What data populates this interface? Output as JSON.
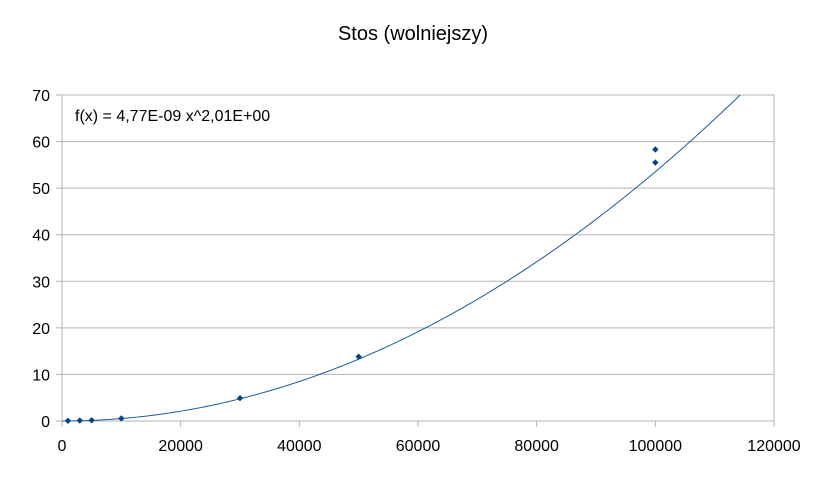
{
  "chart_data": {
    "type": "scatter",
    "title": "Stos (wolniejszy)",
    "xlabel": "",
    "ylabel": "",
    "xlim": [
      0,
      120000
    ],
    "ylim": [
      0,
      70
    ],
    "x_ticks": [
      "0",
      "20000",
      "40000",
      "60000",
      "80000",
      "100000",
      "120000"
    ],
    "y_ticks": [
      "0",
      "10",
      "20",
      "30",
      "40",
      "50",
      "60",
      "70"
    ],
    "grid": "horizontal",
    "legend": "none",
    "points_color": "#004586",
    "trend_color": "#1f5a96",
    "series": [
      {
        "x": [
          1000,
          3000,
          5000,
          10000,
          30000,
          50000,
          100000,
          100000
        ],
        "y": [
          0.05,
          0.1,
          0.15,
          0.55,
          4.9,
          13.8,
          55.5,
          58.3
        ]
      }
    ],
    "trendline": {
      "type": "power",
      "coefficient": 4.77e-09,
      "exponent": 2.01,
      "equation_label": "f(x) = 4,77E-09 x^2,01E+00"
    }
  }
}
